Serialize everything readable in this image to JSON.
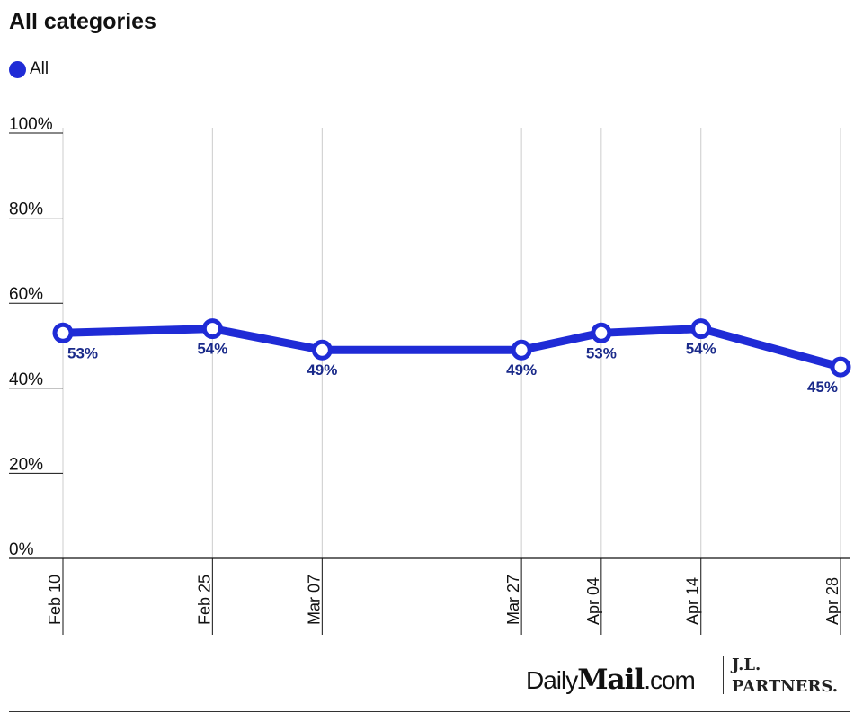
{
  "header": {
    "title": "All categories"
  },
  "legend": [
    {
      "label": "All",
      "color": "#1f2bd6"
    }
  ],
  "colors": {
    "series": "#1f2bd6",
    "label": "#1a2a8a",
    "grid": "#cccccc",
    "axis": "#111111"
  },
  "branding": {
    "dailymail_light1": "Daily",
    "dailymail_bold": "Mail",
    "dailymail_light2": ".com",
    "partner": "J.L.\nPARTNERS."
  },
  "chart_data": {
    "type": "line",
    "title": "All categories",
    "xlabel": "",
    "ylabel": "",
    "ylim": [
      0,
      100
    ],
    "yticks": [
      0,
      20,
      40,
      60,
      80,
      100
    ],
    "ytick_labels": [
      "0%",
      "20%",
      "40%",
      "60%",
      "80%",
      "100%"
    ],
    "x": [
      "2024-02-10",
      "2024-02-25",
      "2024-03-07",
      "2024-03-27",
      "2024-04-04",
      "2024-04-14",
      "2024-04-28"
    ],
    "x_labels": [
      "Feb 10",
      "Feb 25",
      "Mar 07",
      "Mar 27",
      "Apr 04",
      "Apr 14",
      "Apr 28"
    ],
    "series": [
      {
        "name": "All",
        "values": [
          53,
          54,
          49,
          49,
          53,
          54,
          45
        ],
        "data_labels": [
          "53%",
          "54%",
          "49%",
          "49%",
          "53%",
          "54%",
          "45%"
        ]
      }
    ],
    "grid": "vertical",
    "legend_position": "top-left"
  }
}
